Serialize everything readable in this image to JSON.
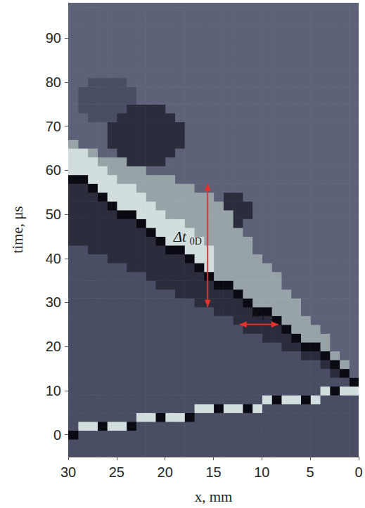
{
  "chart_data": {
    "type": "heatmap",
    "x_label": "x, mm",
    "y_label": "time, μs",
    "xlim": [
      30,
      0
    ],
    "xticks": [
      0,
      5,
      10,
      15,
      20,
      25,
      30
    ],
    "ylim": [
      -5,
      98
    ],
    "yticks": [
      0,
      10,
      20,
      30,
      40,
      50,
      60,
      70,
      80,
      90
    ],
    "value_range": [
      0,
      5
    ],
    "x": [
      0.5,
      1.5,
      2.5,
      3.5,
      4.5,
      5.5,
      6.5,
      7.5,
      8.5,
      9.5,
      10.5,
      11.5,
      12.5,
      13.5,
      14.5,
      15.5,
      16.5,
      17.5,
      18.5,
      19.5,
      20.5,
      21.5,
      22.5,
      23.5,
      24.5,
      25.5,
      26.5,
      27.5,
      28.5,
      29.5
    ],
    "t": [
      -4,
      -2,
      0,
      2,
      4,
      6,
      8,
      10,
      12,
      14,
      16,
      18,
      20,
      22,
      24,
      26,
      28,
      30,
      32,
      34,
      36,
      38,
      40,
      42,
      44,
      46,
      48,
      50,
      52,
      54,
      56,
      58,
      60,
      62,
      64,
      66,
      68,
      70,
      72,
      74,
      76,
      78,
      80,
      82,
      84,
      86,
      88,
      90,
      92,
      94,
      96,
      98
    ],
    "cells_by_x": [
      [
        2,
        2,
        2,
        2,
        2,
        2,
        2,
        5,
        0,
        3,
        3,
        3,
        3,
        3,
        3,
        3,
        3,
        3,
        3,
        3,
        3,
        3,
        3,
        3,
        3,
        3,
        3,
        3,
        3,
        3,
        3,
        3,
        3,
        3,
        3,
        3,
        3,
        3,
        3,
        3,
        3,
        3,
        3,
        3,
        3,
        3,
        3,
        3,
        3,
        3,
        3,
        3
      ],
      [
        2,
        2,
        2,
        2,
        2,
        2,
        2,
        5,
        2,
        0,
        4,
        3,
        3,
        3,
        3,
        3,
        3,
        3,
        3,
        3,
        3,
        3,
        3,
        3,
        3,
        3,
        3,
        3,
        3,
        3,
        3,
        3,
        3,
        3,
        3,
        3,
        3,
        3,
        3,
        3,
        3,
        3,
        3,
        3,
        3,
        3,
        3,
        3,
        3,
        3,
        3,
        3
      ],
      [
        2,
        2,
        2,
        2,
        2,
        2,
        2,
        0,
        2,
        1,
        0,
        4,
        3,
        3,
        3,
        3,
        3,
        3,
        3,
        3,
        3,
        3,
        3,
        3,
        3,
        3,
        3,
        3,
        3,
        3,
        3,
        3,
        3,
        3,
        3,
        3,
        3,
        3,
        3,
        3,
        3,
        3,
        3,
        3,
        3,
        3,
        3,
        3,
        3,
        3,
        3,
        3
      ],
      [
        2,
        2,
        2,
        2,
        2,
        2,
        2,
        5,
        2,
        2,
        1,
        0,
        4,
        4,
        3,
        3,
        3,
        3,
        3,
        3,
        3,
        3,
        3,
        3,
        3,
        3,
        3,
        3,
        3,
        3,
        3,
        3,
        3,
        3,
        3,
        3,
        3,
        3,
        3,
        3,
        3,
        3,
        3,
        3,
        3,
        3,
        3,
        3,
        3,
        3,
        3,
        3
      ],
      [
        2,
        2,
        2,
        2,
        2,
        2,
        5,
        2,
        2,
        2,
        2,
        1,
        0,
        4,
        4,
        3,
        3,
        3,
        3,
        3,
        3,
        3,
        3,
        3,
        3,
        3,
        3,
        3,
        3,
        3,
        3,
        3,
        3,
        3,
        3,
        3,
        3,
        3,
        3,
        3,
        3,
        3,
        3,
        3,
        3,
        3,
        3,
        3,
        3,
        3,
        3,
        3
      ],
      [
        2,
        2,
        2,
        2,
        2,
        2,
        0,
        2,
        2,
        2,
        2,
        1,
        0,
        4,
        4,
        4,
        3,
        3,
        3,
        3,
        3,
        3,
        3,
        3,
        3,
        3,
        3,
        3,
        3,
        3,
        3,
        3,
        3,
        3,
        3,
        3,
        3,
        3,
        3,
        3,
        3,
        3,
        3,
        3,
        3,
        3,
        3,
        3,
        3,
        3,
        3,
        3
      ],
      [
        2,
        2,
        2,
        2,
        2,
        2,
        5,
        2,
        2,
        2,
        2,
        2,
        1,
        0,
        4,
        4,
        4,
        4,
        3,
        3,
        3,
        3,
        3,
        3,
        3,
        3,
        3,
        3,
        3,
        3,
        3,
        3,
        3,
        3,
        3,
        3,
        3,
        3,
        3,
        3,
        3,
        3,
        3,
        3,
        3,
        3,
        3,
        3,
        3,
        3,
        3,
        3
      ],
      [
        2,
        2,
        2,
        2,
        2,
        2,
        5,
        2,
        2,
        2,
        2,
        2,
        1,
        1,
        0,
        4,
        4,
        4,
        4,
        3,
        3,
        3,
        3,
        3,
        3,
        3,
        3,
        3,
        3,
        3,
        3,
        3,
        3,
        3,
        3,
        3,
        3,
        3,
        3,
        3,
        3,
        3,
        3,
        3,
        3,
        3,
        3,
        3,
        3,
        3,
        3,
        3
      ],
      [
        2,
        2,
        2,
        2,
        2,
        2,
        0,
        2,
        2,
        2,
        2,
        2,
        2,
        1,
        1,
        0,
        4,
        4,
        4,
        4,
        4,
        3,
        3,
        3,
        3,
        3,
        3,
        3,
        3,
        3,
        3,
        3,
        3,
        3,
        3,
        3,
        3,
        3,
        3,
        3,
        3,
        3,
        3,
        3,
        3,
        3,
        3,
        3,
        3,
        3,
        3,
        3
      ],
      [
        2,
        2,
        2,
        2,
        2,
        2,
        5,
        2,
        2,
        2,
        2,
        2,
        2,
        1,
        1,
        1,
        0,
        4,
        4,
        4,
        4,
        4,
        3,
        3,
        3,
        3,
        3,
        3,
        3,
        3,
        3,
        3,
        3,
        3,
        3,
        3,
        3,
        3,
        3,
        3,
        3,
        3,
        3,
        3,
        3,
        3,
        3,
        3,
        3,
        3,
        3,
        3
      ],
      [
        2,
        2,
        2,
        2,
        2,
        5,
        2,
        2,
        2,
        2,
        2,
        2,
        2,
        2,
        1,
        1,
        0,
        4,
        4,
        4,
        4,
        4,
        4,
        3,
        3,
        3,
        3,
        3,
        3,
        3,
        3,
        3,
        3,
        3,
        3,
        3,
        3,
        3,
        3,
        3,
        3,
        3,
        3,
        3,
        3,
        3,
        3,
        3,
        3,
        3,
        3,
        3
      ],
      [
        2,
        2,
        2,
        2,
        2,
        0,
        2,
        2,
        2,
        2,
        2,
        2,
        2,
        2,
        1,
        1,
        1,
        0,
        4,
        4,
        4,
        4,
        4,
        4,
        4,
        3,
        3,
        1,
        1,
        3,
        3,
        3,
        3,
        3,
        3,
        3,
        3,
        3,
        3,
        3,
        3,
        3,
        3,
        3,
        3,
        3,
        3,
        3,
        3,
        3,
        3,
        3
      ],
      [
        2,
        2,
        2,
        2,
        2,
        5,
        2,
        2,
        2,
        2,
        2,
        2,
        2,
        2,
        2,
        1,
        1,
        1,
        0,
        4,
        4,
        4,
        4,
        4,
        4,
        4,
        1,
        1,
        1,
        1,
        3,
        3,
        3,
        3,
        3,
        3,
        3,
        3,
        3,
        3,
        3,
        3,
        3,
        3,
        3,
        3,
        3,
        3,
        3,
        3,
        3,
        3
      ],
      [
        2,
        2,
        2,
        2,
        2,
        5,
        2,
        2,
        2,
        2,
        2,
        2,
        2,
        2,
        2,
        2,
        1,
        1,
        1,
        0,
        4,
        4,
        4,
        4,
        4,
        4,
        4,
        4,
        1,
        1,
        3,
        3,
        3,
        3,
        3,
        3,
        3,
        3,
        3,
        3,
        3,
        3,
        3,
        3,
        3,
        3,
        3,
        3,
        3,
        3,
        3,
        3
      ],
      [
        2,
        2,
        2,
        2,
        2,
        0,
        2,
        2,
        2,
        2,
        2,
        2,
        2,
        2,
        2,
        2,
        1,
        1,
        1,
        0,
        4,
        4,
        4,
        4,
        4,
        4,
        4,
        4,
        4,
        3,
        3,
        3,
        3,
        3,
        3,
        3,
        3,
        3,
        3,
        3,
        3,
        3,
        3,
        3,
        3,
        3,
        3,
        3,
        3,
        3,
        3,
        3
      ],
      [
        2,
        2,
        2,
        2,
        2,
        5,
        2,
        2,
        2,
        2,
        2,
        2,
        2,
        2,
        2,
        2,
        2,
        1,
        1,
        1,
        0,
        5,
        5,
        5,
        4,
        4,
        4,
        4,
        4,
        4,
        3,
        3,
        3,
        3,
        3,
        3,
        3,
        3,
        3,
        3,
        3,
        3,
        3,
        3,
        3,
        3,
        3,
        3,
        3,
        3,
        3,
        3
      ],
      [
        2,
        2,
        2,
        2,
        2,
        5,
        2,
        2,
        2,
        2,
        2,
        2,
        2,
        2,
        2,
        2,
        2,
        1,
        1,
        1,
        1,
        0,
        5,
        5,
        5,
        4,
        4,
        4,
        4,
        4,
        3,
        3,
        3,
        3,
        3,
        3,
        3,
        3,
        3,
        3,
        3,
        3,
        3,
        3,
        3,
        3,
        3,
        3,
        3,
        3,
        3,
        3
      ],
      [
        2,
        2,
        2,
        2,
        0,
        2,
        2,
        2,
        2,
        2,
        2,
        2,
        2,
        2,
        2,
        2,
        2,
        2,
        1,
        1,
        1,
        1,
        0,
        5,
        5,
        5,
        4,
        4,
        4,
        4,
        4,
        3,
        3,
        3,
        3,
        3,
        3,
        3,
        3,
        3,
        3,
        3,
        3,
        3,
        3,
        3,
        3,
        3,
        3,
        3,
        3,
        3
      ],
      [
        2,
        2,
        2,
        2,
        5,
        2,
        2,
        2,
        2,
        2,
        2,
        2,
        2,
        2,
        2,
        2,
        2,
        2,
        1,
        1,
        1,
        1,
        1,
        0,
        5,
        5,
        5,
        4,
        4,
        4,
        4,
        3,
        3,
        3,
        3,
        1,
        1,
        1,
        3,
        3,
        3,
        3,
        3,
        3,
        3,
        3,
        3,
        3,
        3,
        3,
        3,
        3
      ],
      [
        2,
        2,
        2,
        2,
        5,
        2,
        2,
        2,
        2,
        2,
        2,
        2,
        2,
        2,
        2,
        2,
        2,
        2,
        2,
        1,
        1,
        1,
        1,
        0,
        5,
        5,
        5,
        4,
        4,
        4,
        4,
        4,
        3,
        3,
        1,
        1,
        1,
        1,
        1,
        3,
        3,
        3,
        3,
        3,
        3,
        3,
        3,
        3,
        3,
        3,
        3,
        3
      ],
      [
        2,
        2,
        2,
        2,
        0,
        2,
        2,
        2,
        2,
        2,
        2,
        2,
        2,
        2,
        2,
        2,
        2,
        2,
        2,
        1,
        1,
        1,
        1,
        1,
        0,
        5,
        5,
        5,
        4,
        4,
        4,
        4,
        3,
        1,
        1,
        1,
        1,
        1,
        1,
        1,
        3,
        3,
        3,
        3,
        3,
        3,
        3,
        3,
        3,
        3,
        3,
        3
      ],
      [
        2,
        2,
        2,
        2,
        5,
        2,
        2,
        2,
        2,
        2,
        2,
        2,
        2,
        2,
        2,
        2,
        2,
        2,
        2,
        2,
        1,
        1,
        1,
        1,
        1,
        0,
        5,
        5,
        5,
        4,
        4,
        4,
        3,
        1,
        1,
        1,
        1,
        1,
        1,
        1,
        3,
        3,
        3,
        3,
        3,
        3,
        3,
        3,
        3,
        3,
        3,
        3
      ],
      [
        2,
        2,
        2,
        2,
        5,
        2,
        2,
        2,
        2,
        2,
        2,
        2,
        2,
        2,
        2,
        2,
        2,
        2,
        2,
        2,
        2,
        1,
        1,
        1,
        1,
        1,
        0,
        5,
        5,
        5,
        4,
        4,
        4,
        1,
        1,
        1,
        1,
        1,
        1,
        1,
        3,
        3,
        3,
        3,
        3,
        3,
        3,
        3,
        3,
        3,
        3,
        3
      ],
      [
        2,
        2,
        2,
        0,
        2,
        2,
        2,
        2,
        2,
        2,
        2,
        2,
        2,
        2,
        2,
        2,
        2,
        2,
        2,
        2,
        2,
        1,
        1,
        1,
        1,
        1,
        1,
        0,
        5,
        5,
        5,
        4,
        4,
        1,
        1,
        1,
        1,
        1,
        1,
        1,
        2,
        2,
        3,
        3,
        3,
        3,
        3,
        3,
        3,
        3,
        3,
        3
      ],
      [
        2,
        2,
        2,
        5,
        2,
        2,
        2,
        2,
        2,
        2,
        2,
        2,
        2,
        2,
        2,
        2,
        2,
        2,
        2,
        2,
        2,
        2,
        1,
        1,
        1,
        1,
        1,
        0,
        5,
        5,
        5,
        4,
        4,
        4,
        1,
        1,
        1,
        1,
        1,
        2,
        2,
        2,
        2,
        3,
        3,
        3,
        3,
        3,
        3,
        3,
        3,
        3
      ],
      [
        2,
        2,
        2,
        5,
        2,
        2,
        2,
        2,
        2,
        2,
        2,
        2,
        2,
        2,
        2,
        2,
        2,
        2,
        2,
        2,
        2,
        2,
        1,
        1,
        1,
        1,
        1,
        1,
        0,
        5,
        5,
        5,
        4,
        4,
        3,
        1,
        1,
        1,
        2,
        2,
        2,
        2,
        2,
        3,
        3,
        3,
        3,
        3,
        3,
        3,
        3,
        3
      ],
      [
        2,
        2,
        2,
        0,
        2,
        2,
        2,
        2,
        2,
        2,
        2,
        2,
        2,
        2,
        2,
        2,
        2,
        2,
        2,
        2,
        2,
        2,
        2,
        1,
        1,
        1,
        1,
        1,
        1,
        0,
        5,
        5,
        5,
        4,
        3,
        3,
        3,
        3,
        2,
        2,
        2,
        2,
        2,
        3,
        3,
        3,
        3,
        3,
        3,
        3,
        3,
        3
      ],
      [
        2,
        2,
        2,
        5,
        2,
        2,
        2,
        2,
        2,
        2,
        2,
        2,
        2,
        2,
        2,
        2,
        2,
        2,
        2,
        2,
        2,
        2,
        2,
        1,
        1,
        1,
        1,
        1,
        1,
        1,
        0,
        5,
        5,
        5,
        4,
        3,
        3,
        3,
        2,
        2,
        2,
        2,
        2,
        3,
        3,
        3,
        3,
        3,
        3,
        3,
        3,
        3
      ],
      [
        2,
        2,
        2,
        5,
        2,
        2,
        2,
        2,
        2,
        2,
        2,
        2,
        2,
        2,
        2,
        2,
        2,
        2,
        2,
        2,
        2,
        2,
        2,
        2,
        1,
        1,
        1,
        1,
        1,
        1,
        1,
        0,
        5,
        5,
        5,
        3,
        3,
        3,
        3,
        2,
        2,
        2,
        3,
        3,
        3,
        3,
        3,
        3,
        3,
        3,
        3,
        3
      ],
      [
        2,
        2,
        0,
        2,
        2,
        2,
        2,
        2,
        2,
        2,
        2,
        2,
        2,
        2,
        2,
        2,
        2,
        2,
        2,
        2,
        2,
        2,
        2,
        2,
        1,
        1,
        1,
        1,
        1,
        1,
        1,
        0,
        5,
        5,
        5,
        4,
        3,
        3,
        3,
        3,
        3,
        3,
        3,
        3,
        3,
        3,
        3,
        3,
        3,
        3,
        3,
        3
      ]
    ],
    "annotations": [
      {
        "text": "Δt",
        "subscript": "0D",
        "x": [
          15.6,
          15.6
        ],
        "t": [
          29,
          57
        ]
      },
      {
        "text": "x",
        "subscript": "1",
        "x": [
          12.3,
          8.3
        ],
        "t": [
          25,
          25
        ]
      }
    ]
  }
}
